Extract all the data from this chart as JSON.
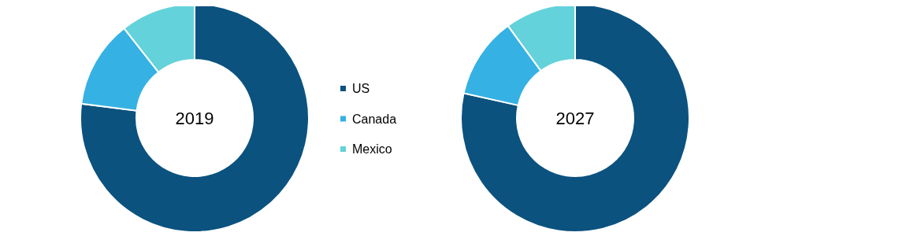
{
  "chart_data": {
    "type": "donut",
    "categories": [
      "US",
      "Canada",
      "Mexico"
    ],
    "colors": [
      "#0b527f",
      "#36b1e3",
      "#63d2da"
    ],
    "legend": "right",
    "series": [
      {
        "name": "2019",
        "values": [
          77,
          12.4,
          10.6
        ]
      },
      {
        "name": "2027",
        "values": [
          78.5,
          11.5,
          10
        ]
      }
    ]
  }
}
